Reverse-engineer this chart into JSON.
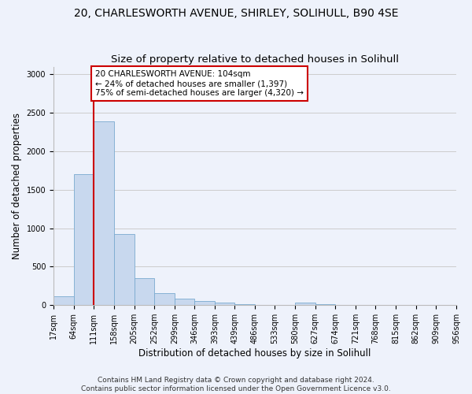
{
  "title_line1": "20, CHARLESWORTH AVENUE, SHIRLEY, SOLIHULL, B90 4SE",
  "title_line2": "Size of property relative to detached houses in Solihull",
  "xlabel": "Distribution of detached houses by size in Solihull",
  "ylabel": "Number of detached properties",
  "bar_edges": [
    17,
    64,
    111,
    158,
    205,
    252,
    299,
    346,
    393,
    439,
    486,
    533,
    580,
    627,
    674,
    721,
    768,
    815,
    862,
    909,
    956
  ],
  "bar_heights": [
    120,
    1700,
    2390,
    920,
    350,
    155,
    80,
    55,
    35,
    10,
    5,
    3,
    35,
    8,
    3,
    2,
    2,
    2,
    2,
    2
  ],
  "bar_color": "#c8d8ee",
  "bar_edgecolor": "#7aaad0",
  "grid_color": "#cccccc",
  "background_color": "#eef2fb",
  "vline_x": 111,
  "vline_color": "#cc0000",
  "annotation_line1": "20 CHARLESWORTH AVENUE: 104sqm",
  "annotation_line2": "← 24% of detached houses are smaller (1,397)",
  "annotation_line3": "75% of semi-detached houses are larger (4,320) →",
  "annotation_box_color": "#cc0000",
  "annotation_box_bg": "#ffffff",
  "ylim": [
    0,
    3100
  ],
  "yticks": [
    0,
    500,
    1000,
    1500,
    2000,
    2500,
    3000
  ],
  "footer_line1": "Contains HM Land Registry data © Crown copyright and database right 2024.",
  "footer_line2": "Contains public sector information licensed under the Open Government Licence v3.0.",
  "title_fontsize": 10,
  "subtitle_fontsize": 9.5,
  "axis_label_fontsize": 8.5,
  "tick_fontsize": 7,
  "annotation_fontsize": 7.5,
  "footer_fontsize": 6.5
}
